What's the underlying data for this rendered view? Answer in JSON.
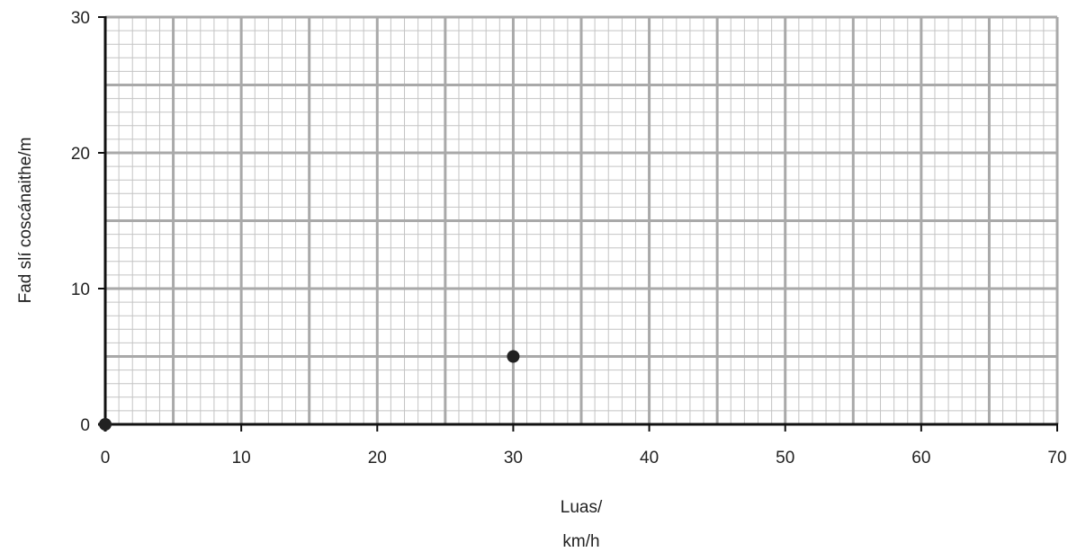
{
  "chart_data": {
    "type": "scatter",
    "title": "",
    "xlabel_lines": [
      "Luas/",
      "km/h"
    ],
    "ylabel": "Fad slí coscánaithe/m",
    "xlim": [
      0,
      70
    ],
    "ylim": [
      0,
      30
    ],
    "x_ticks": [
      0,
      10,
      20,
      30,
      40,
      50,
      60,
      70
    ],
    "y_ticks": [
      0,
      10,
      20,
      30
    ],
    "grid": {
      "minor_step": 1,
      "medium_step_x": 5,
      "medium_step_y": 5,
      "major_step_x": 10,
      "major_step_y": 10
    },
    "series": [
      {
        "points": [
          {
            "x": 0,
            "y": 0
          },
          {
            "x": 30,
            "y": 5
          }
        ],
        "color": "#222222"
      }
    ]
  },
  "colors": {
    "axis": "#111111",
    "grid_minor": "#c4c4c4",
    "grid_major": "#a9a9a9",
    "point": "#222222"
  }
}
